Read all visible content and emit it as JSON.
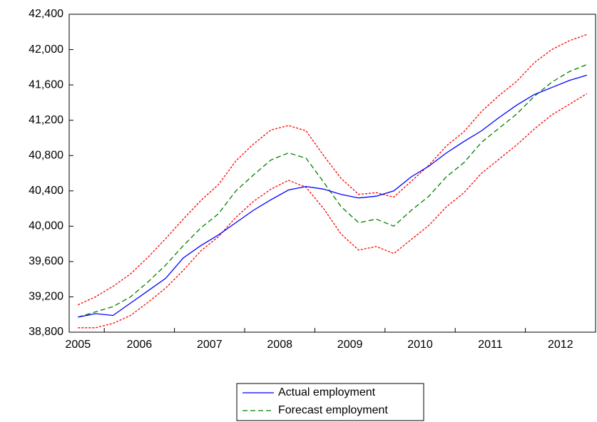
{
  "chart_data": {
    "type": "line",
    "categories": [
      "2005",
      null,
      null,
      "2006",
      null,
      null,
      null,
      "2007",
      null,
      null,
      null,
      "2008",
      null,
      null,
      null,
      "2009",
      null,
      null,
      null,
      "2010",
      null,
      null,
      null,
      "2011",
      null,
      null,
      null,
      "2012",
      null,
      null
    ],
    "series": [
      {
        "color": "#ff0000",
        "style": "dotted",
        "values": [
          39110,
          39200,
          39320,
          39460,
          39650,
          39860,
          40080,
          40290,
          40470,
          40740,
          40930,
          41090,
          41140,
          41080,
          40800,
          40540,
          40360,
          40380,
          40330,
          40510,
          40690,
          40910,
          41070,
          41300,
          41480,
          41640,
          41850,
          42000,
          42100,
          42170
        ]
      },
      {
        "color": "#ff0000",
        "style": "dotted",
        "values": [
          38850,
          38850,
          38900,
          38990,
          39140,
          39300,
          39500,
          39720,
          39880,
          40100,
          40280,
          40420,
          40520,
          40440,
          40200,
          39910,
          39730,
          39770,
          39690,
          39850,
          40010,
          40220,
          40380,
          40600,
          40760,
          40920,
          41100,
          41260,
          41380,
          41500
        ]
      },
      {
        "name": "Forecast employment",
        "color": "#008000",
        "style": "dashed",
        "values": [
          38970,
          39030,
          39090,
          39200,
          39370,
          39560,
          39780,
          39980,
          40140,
          40400,
          40580,
          40750,
          40830,
          40770,
          40500,
          40220,
          40040,
          40080,
          40000,
          40180,
          40340,
          40560,
          40720,
          40950,
          41110,
          41270,
          41470,
          41630,
          41750,
          41830
        ]
      },
      {
        "name": "Actual employment",
        "color": "#0000ff",
        "style": "solid",
        "values": [
          38970,
          39010,
          38990,
          39130,
          39270,
          39410,
          39640,
          39780,
          39900,
          40040,
          40180,
          40300,
          40410,
          40450,
          40420,
          40360,
          40320,
          40340,
          40400,
          40560,
          40680,
          40830,
          40960,
          41080,
          41230,
          41370,
          41490,
          41570,
          41650,
          41710
        ]
      }
    ],
    "ylim": [
      38800,
      42400
    ],
    "yticks": [
      {
        "value": 38800,
        "label": "38,800"
      },
      {
        "value": 39200,
        "label": "39,200"
      },
      {
        "value": 39600,
        "label": "39,600"
      },
      {
        "value": 40000,
        "label": "40,000"
      },
      {
        "value": 40400,
        "label": "40,400"
      },
      {
        "value": 40800,
        "label": "40,800"
      },
      {
        "value": 41200,
        "label": "41,200"
      },
      {
        "value": 41600,
        "label": "41,600"
      },
      {
        "value": 42000,
        "label": "42,000"
      },
      {
        "value": 42400,
        "label": "42,400"
      }
    ],
    "grid": false
  }
}
